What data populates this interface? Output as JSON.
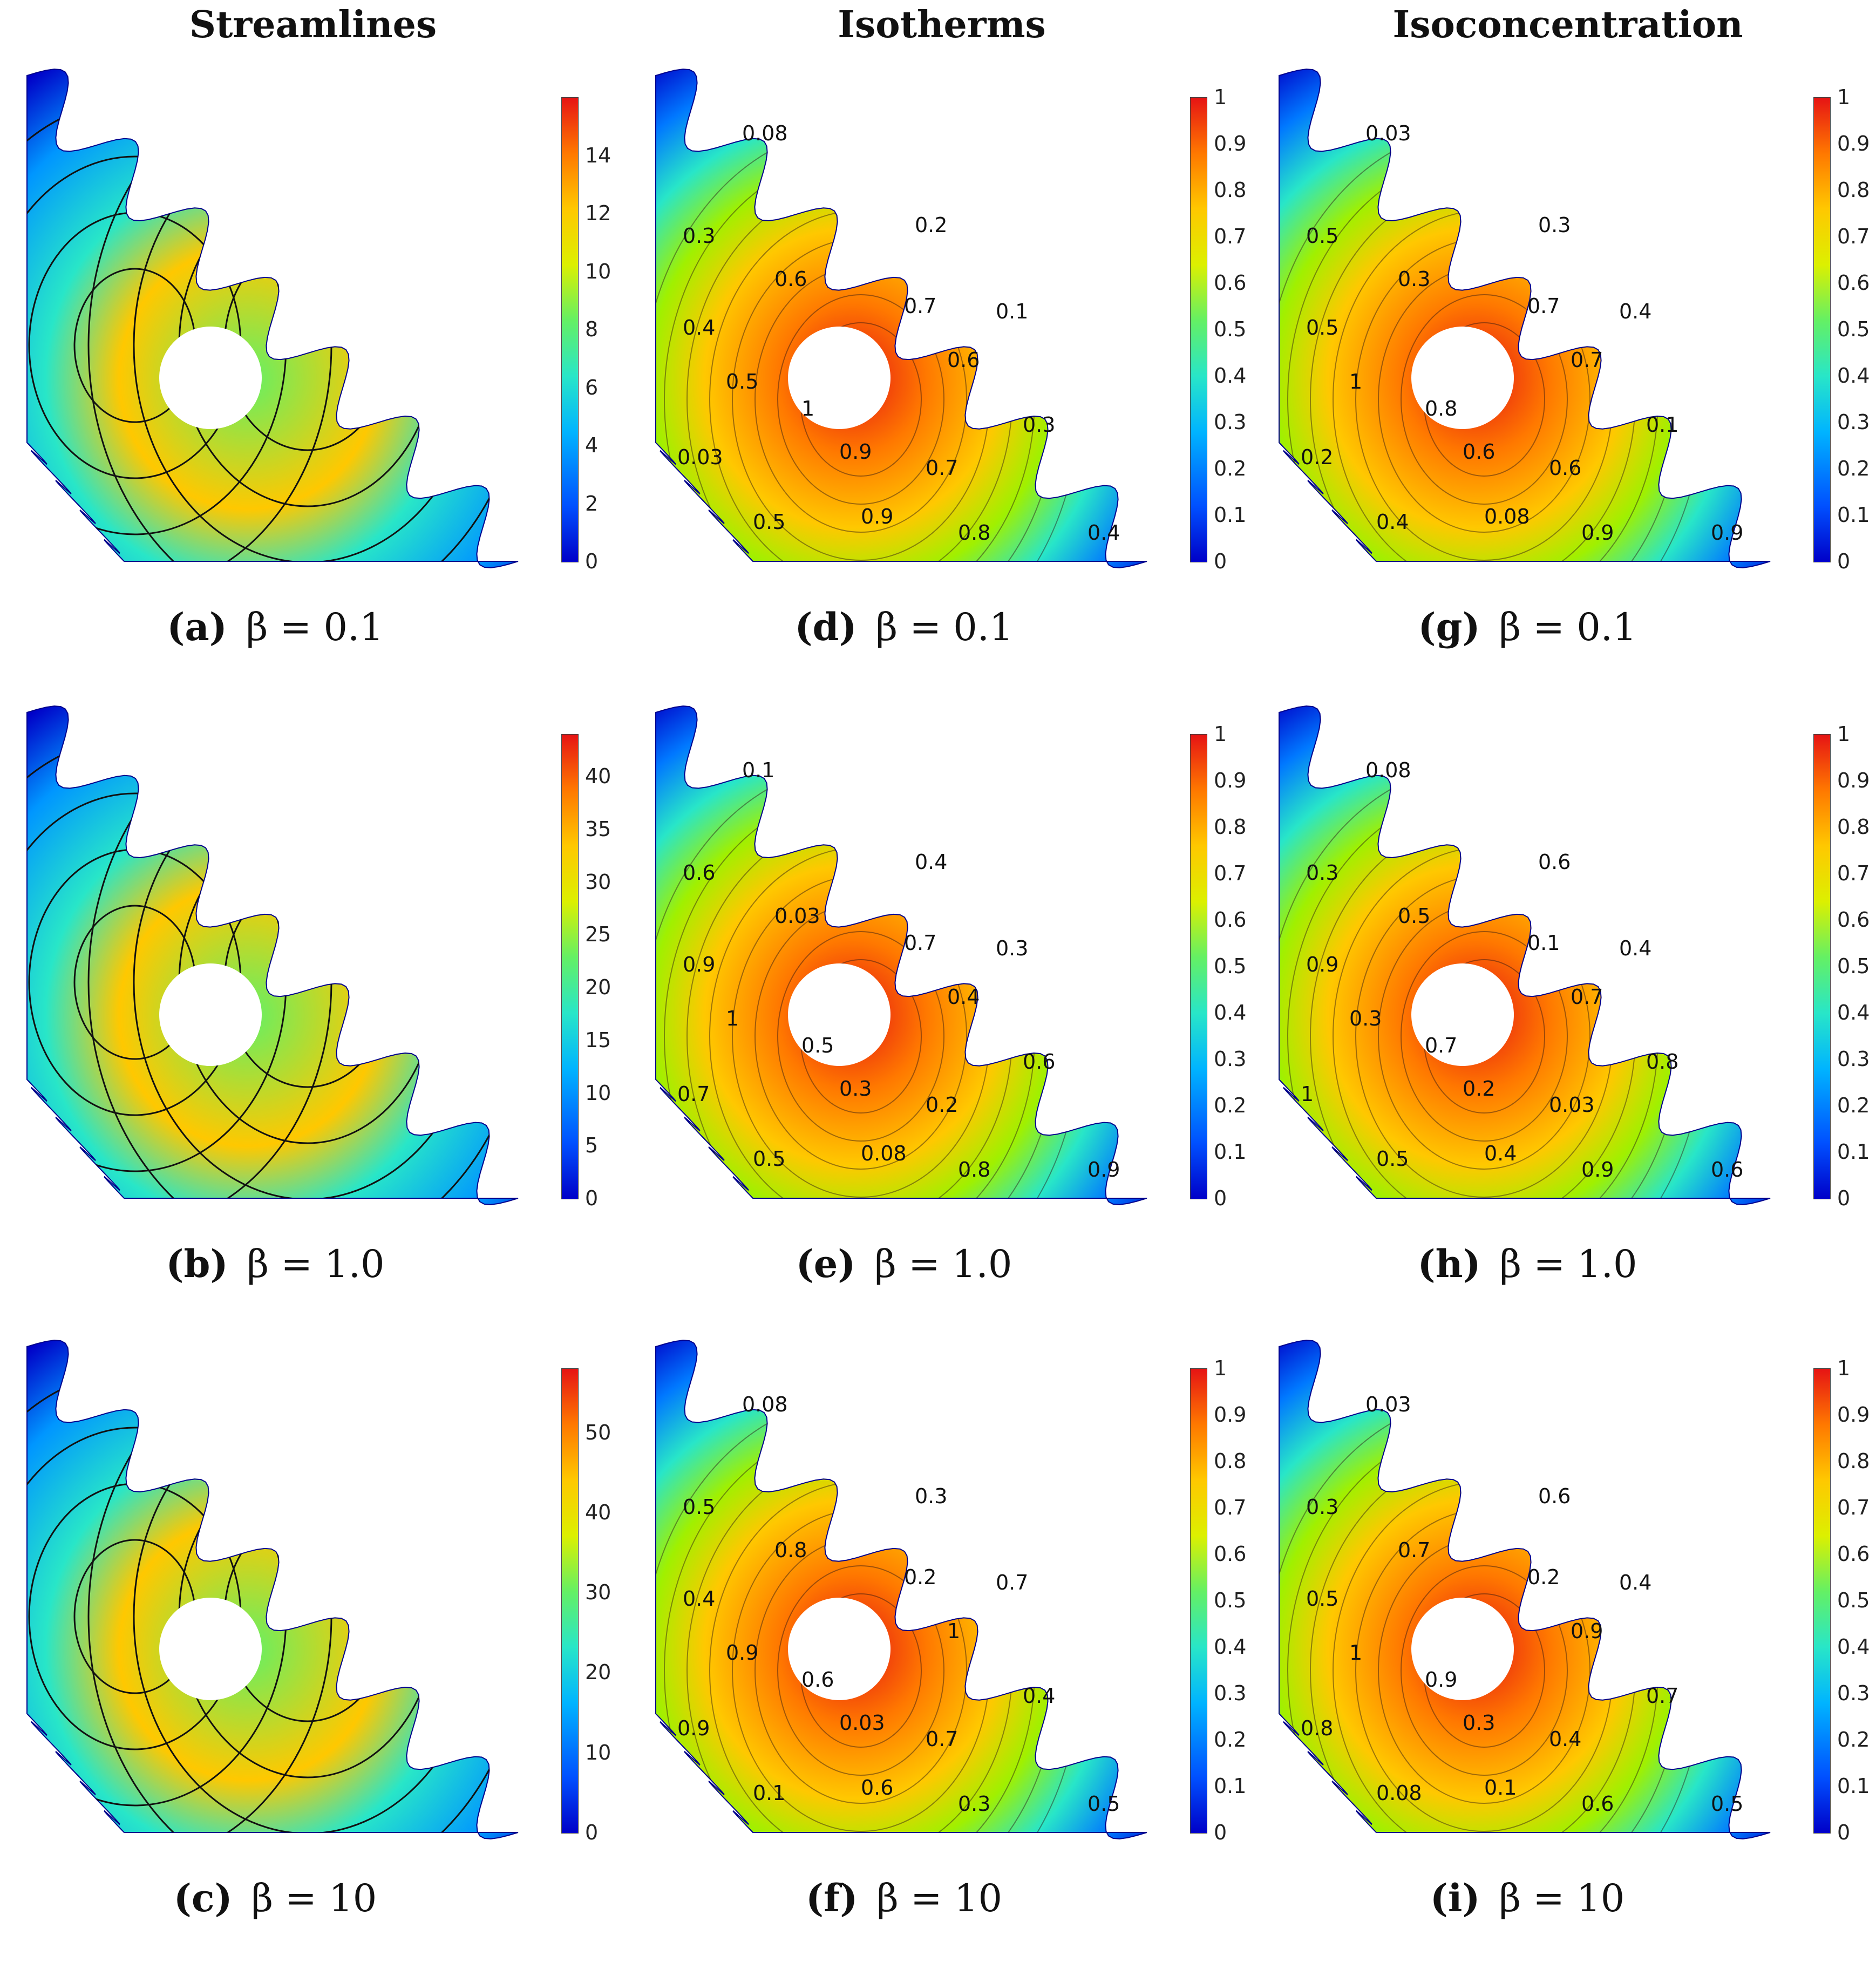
{
  "headers": {
    "streamlines": "Streamlines",
    "isotherms": "Isotherms",
    "isoconcentration": "Isoconcentration"
  },
  "colors": {
    "jet": [
      "#0000c8",
      "#0050ff",
      "#00b4ff",
      "#28e6c8",
      "#64f064",
      "#dcf000",
      "#ffc800",
      "#ff7800",
      "#e61414"
    ]
  },
  "panels": [
    {
      "id": "a",
      "kind": "streamlines",
      "caption_letter": "(a)",
      "caption_beta": "β = 0.1",
      "colorbar_ticks": [
        "0",
        "2",
        "4",
        "6",
        "8",
        "10",
        "12",
        "14"
      ],
      "colorbar_max": 16,
      "contour_labels": []
    },
    {
      "id": "b",
      "kind": "streamlines",
      "caption_letter": "(b)",
      "caption_beta": "β = 1.0",
      "colorbar_ticks": [
        "0",
        "5",
        "10",
        "15",
        "20",
        "25",
        "30",
        "35",
        "40"
      ],
      "colorbar_max": 44,
      "contour_labels": []
    },
    {
      "id": "c",
      "kind": "streamlines",
      "caption_letter": "(c)",
      "caption_beta": "β = 10",
      "colorbar_ticks": [
        "0",
        "10",
        "20",
        "30",
        "40",
        "50"
      ],
      "colorbar_max": 58,
      "contour_labels": []
    },
    {
      "id": "d",
      "kind": "isotherms",
      "caption_letter": "(d)",
      "caption_beta": "β = 0.1",
      "colorbar_ticks": [
        "0",
        "0.1",
        "0.2",
        "0.3",
        "0.4",
        "0.5",
        "0.6",
        "0.7",
        "0.8",
        "0.9",
        "1"
      ],
      "colorbar_max": 1,
      "contour_labels": [
        "0.08",
        "0.2",
        "0.3",
        "0.1",
        "0.6",
        "0.7",
        "0.4",
        "0.6",
        "0.5",
        "1",
        "0.3",
        "0.03",
        "0.9",
        "0.7",
        "0.5",
        "0.9",
        "0.8",
        "0.4"
      ]
    },
    {
      "id": "e",
      "kind": "isotherms",
      "caption_letter": "(e)",
      "caption_beta": "β = 1.0",
      "colorbar_ticks": [
        "0",
        "0.1",
        "0.2",
        "0.3",
        "0.4",
        "0.5",
        "0.6",
        "0.7",
        "0.8",
        "0.9",
        "1"
      ],
      "colorbar_max": 1,
      "contour_labels": [
        "0.1",
        "0.4",
        "0.6",
        "0.3",
        "0.03",
        "0.7",
        "0.9",
        "0.4",
        "1",
        "0.5",
        "0.6",
        "0.7",
        "0.3",
        "0.2",
        "0.5",
        "0.08",
        "0.8",
        "0.9"
      ]
    },
    {
      "id": "f",
      "kind": "isotherms",
      "caption_letter": "(f)",
      "caption_beta": "β = 10",
      "colorbar_ticks": [
        "0",
        "0.1",
        "0.2",
        "0.3",
        "0.4",
        "0.5",
        "0.6",
        "0.7",
        "0.8",
        "0.9",
        "1"
      ],
      "colorbar_max": 1,
      "contour_labels": [
        "0.08",
        "0.3",
        "0.5",
        "0.7",
        "0.8",
        "0.2",
        "0.4",
        "1",
        "0.9",
        "0.6",
        "0.4",
        "0.9",
        "0.03",
        "0.7",
        "0.1",
        "0.6",
        "0.3",
        "0.5"
      ]
    },
    {
      "id": "g",
      "kind": "isoconcentration",
      "caption_letter": "(g)",
      "caption_beta": "β = 0.1",
      "colorbar_ticks": [
        "0",
        "0.1",
        "0.2",
        "0.3",
        "0.4",
        "0.5",
        "0.6",
        "0.7",
        "0.8",
        "0.9",
        "1"
      ],
      "colorbar_max": 1,
      "contour_labels": [
        "0.03",
        "0.3",
        "0.5",
        "0.4",
        "0.3",
        "0.7",
        "0.5",
        "0.7",
        "1",
        "0.8",
        "0.1",
        "0.2",
        "0.6",
        "0.6",
        "0.4",
        "0.08",
        "0.9",
        "0.9"
      ]
    },
    {
      "id": "h",
      "kind": "isoconcentration",
      "caption_letter": "(h)",
      "caption_beta": "β = 1.0",
      "colorbar_ticks": [
        "0",
        "0.1",
        "0.2",
        "0.3",
        "0.4",
        "0.5",
        "0.6",
        "0.7",
        "0.8",
        "0.9",
        "1"
      ],
      "colorbar_max": 1,
      "contour_labels": [
        "0.08",
        "0.6",
        "0.3",
        "0.4",
        "0.5",
        "0.1",
        "0.9",
        "0.7",
        "0.3",
        "0.7",
        "0.8",
        "1",
        "0.2",
        "0.03",
        "0.5",
        "0.4",
        "0.9",
        "0.6"
      ]
    },
    {
      "id": "i",
      "kind": "isoconcentration",
      "caption_letter": "(i)",
      "caption_beta": "β = 10",
      "colorbar_ticks": [
        "0",
        "0.1",
        "0.2",
        "0.3",
        "0.4",
        "0.5",
        "0.6",
        "0.7",
        "0.8",
        "0.9",
        "1"
      ],
      "colorbar_max": 1,
      "contour_labels": [
        "0.03",
        "0.6",
        "0.3",
        "0.4",
        "0.7",
        "0.2",
        "0.5",
        "0.9",
        "1",
        "0.9",
        "0.7",
        "0.8",
        "0.3",
        "0.4",
        "0.08",
        "0.1",
        "0.6",
        "0.5"
      ]
    }
  ]
}
